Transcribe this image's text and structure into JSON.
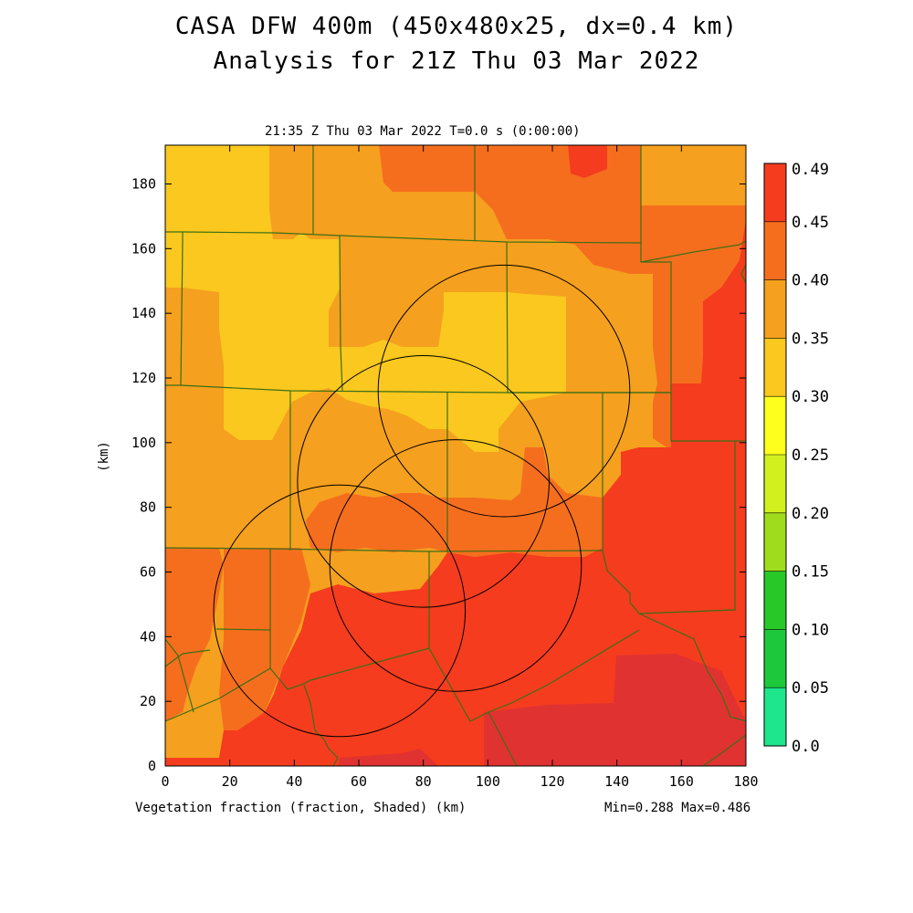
{
  "header": {
    "title_line1": "CASA DFW 400m (450x480x25, dx=0.4 km)",
    "title_line2": "Analysis for 21Z Thu 03 Mar 2022",
    "valid_time": "21:35 Z Thu 03 Mar 2022    T=0.0 s (0:00:00)"
  },
  "footer": {
    "field_label": "Vegetation fraction (fraction, Shaded)  (km)",
    "min_max": "Min=0.288 Max=0.486"
  },
  "axes": {
    "ylabel": "(km)",
    "x_ticks": [
      0,
      20,
      40,
      60,
      80,
      100,
      120,
      140,
      160,
      180
    ],
    "y_ticks": [
      0,
      20,
      40,
      60,
      80,
      100,
      120,
      140,
      160,
      180
    ],
    "xlim": [
      0,
      180
    ],
    "ylim": [
      0,
      192
    ]
  },
  "colorbar": {
    "labels": [
      "0.0",
      "0.05",
      "0.10",
      "0.15",
      "0.20",
      "0.25",
      "0.30",
      "0.35",
      "0.40",
      "0.45",
      "0.49"
    ],
    "colors": [
      "#1ee68c",
      "#1ec83c",
      "#28c828",
      "#a0dc1e",
      "#d2f01e",
      "#ffff1e",
      "#fac81e",
      "#f5a01e",
      "#f56e1e",
      "#f53c1e",
      "#e13232"
    ]
  },
  "map_colors": {
    "c025": "#fac81e",
    "c030": "#f5a01e",
    "c035": "#f56e1e",
    "c040": "#f53c1e",
    "c045": "#e13232",
    "boundary": "#3c6e14",
    "radar_ring": "#000000"
  },
  "map_data": {
    "radar_rings": [
      {
        "center_km": [
          54,
          48
        ],
        "radius_km": 39
      },
      {
        "center_km": [
          80,
          88
        ],
        "radius_km": 39
      },
      {
        "center_km": [
          90,
          62
        ],
        "radius_km": 39
      },
      {
        "center_km": [
          105,
          116
        ],
        "radius_km": 39
      }
    ]
  }
}
